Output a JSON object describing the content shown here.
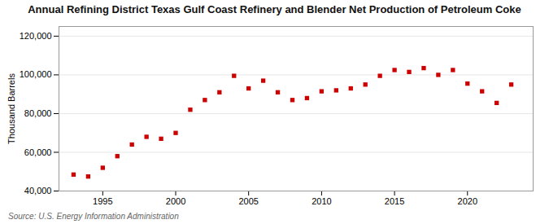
{
  "chart_data": {
    "type": "scatter",
    "title": "Annual Refining District Texas Gulf Coast Refinery and Blender Net Production of Petroleum Coke",
    "ylabel": "Thousand Barrels",
    "source": "Source: U.S. Energy Information Administration",
    "x": [
      1993,
      1994,
      1995,
      1996,
      1997,
      1998,
      1999,
      2000,
      2001,
      2002,
      2003,
      2004,
      2005,
      2006,
      2007,
      2008,
      2009,
      2010,
      2011,
      2012,
      2013,
      2014,
      2015,
      2016,
      2017,
      2018,
      2019,
      2020,
      2021,
      2022,
      2023
    ],
    "values": [
      48500,
      47500,
      52000,
      58000,
      64000,
      68000,
      67000,
      70000,
      82000,
      87000,
      91000,
      99500,
      93000,
      97000,
      91000,
      87000,
      88000,
      91500,
      92000,
      93000,
      95000,
      99500,
      102500,
      101500,
      103500,
      100000,
      102500,
      95500,
      91500,
      85500,
      95000
    ],
    "color": "#cc0000",
    "marker": "square",
    "xlim": [
      1992.0,
      2024.5
    ],
    "xticks": [
      1995,
      2000,
      2005,
      2010,
      2015,
      2020
    ],
    "ylim": [
      40000,
      125000
    ],
    "yticks": [
      {
        "value": 40000,
        "label": "40,000"
      },
      {
        "value": 60000,
        "label": "60,000"
      },
      {
        "value": 80000,
        "label": "80,000"
      },
      {
        "value": 100000,
        "label": "100,000"
      },
      {
        "value": 120000,
        "label": "120,000"
      }
    ],
    "grid": "y"
  }
}
